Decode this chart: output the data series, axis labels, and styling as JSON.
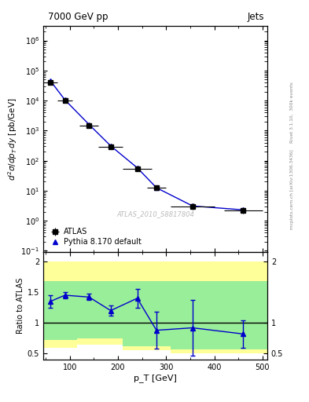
{
  "title_left": "7000 GeV pp",
  "title_right": "Jets",
  "right_label_top": "Rivet 3.1.10,  300k events",
  "right_label_bottom": "mcplots.cern.ch [arXiv:1306.3436]",
  "watermark": "ATLAS_2010_S8817804",
  "ylabel_main": "d²σ/dp_T dy [pb/GeV]",
  "xlabel": "p_T [GeV]",
  "ylabel_ratio": "Ratio to ATLAS",
  "atlas_x": [
    60,
    90,
    140,
    185,
    240,
    280,
    355,
    460
  ],
  "atlas_y": [
    40000.0,
    10000.0,
    1500.0,
    280.0,
    55.0,
    13.0,
    3.0,
    2.2
  ],
  "atlas_xerr": [
    15,
    15,
    20,
    25,
    30,
    20,
    45,
    40
  ],
  "atlas_yerr_lo": [
    4000,
    1200,
    180,
    40,
    8,
    2.5,
    0.7,
    0.5
  ],
  "atlas_yerr_hi": [
    4000,
    1200,
    180,
    40,
    8,
    2.5,
    0.7,
    0.5
  ],
  "pythia_x": [
    60,
    90,
    140,
    185,
    240,
    280,
    355,
    460
  ],
  "pythia_y": [
    45000.0,
    10500.0,
    1600.0,
    310.0,
    58.0,
    12.5,
    3.1,
    2.3
  ],
  "ratio_x": [
    60,
    90,
    140,
    185,
    240,
    280,
    355,
    460
  ],
  "ratio_y": [
    1.35,
    1.45,
    1.42,
    1.2,
    1.4,
    0.88,
    0.92,
    0.82
  ],
  "ratio_yerr_lo": [
    0.1,
    0.05,
    0.05,
    0.08,
    0.15,
    0.3,
    0.45,
    0.22
  ],
  "ratio_yerr_hi": [
    0.1,
    0.05,
    0.05,
    0.08,
    0.15,
    0.3,
    0.45,
    0.22
  ],
  "band_yellow_edges": [
    45,
    75,
    115,
    160,
    210,
    265,
    310,
    415,
    510
  ],
  "band_yellow_lo": [
    0.6,
    0.6,
    0.65,
    0.65,
    0.55,
    0.55,
    0.5,
    0.5
  ],
  "band_yellow_hi": [
    2.0,
    2.0,
    2.0,
    2.0,
    2.0,
    2.0,
    2.0,
    2.0
  ],
  "band_green_edges": [
    45,
    75,
    115,
    160,
    210,
    265,
    310,
    415,
    510
  ],
  "band_green_lo": [
    0.72,
    0.72,
    0.75,
    0.75,
    0.62,
    0.62,
    0.57,
    0.57
  ],
  "band_green_hi": [
    1.68,
    1.68,
    1.68,
    1.68,
    1.68,
    1.68,
    1.68,
    1.68
  ],
  "xlim": [
    45,
    510
  ],
  "ylim_main_lo": 0.09,
  "ylim_main_hi": 3000000.0,
  "ylim_ratio_lo": 0.4,
  "ylim_ratio_hi": 2.15,
  "color_atlas": "#000000",
  "color_pythia": "#0000cc",
  "color_yellow": "#ffff99",
  "color_green": "#99ee99",
  "bg_color": "#ffffff"
}
